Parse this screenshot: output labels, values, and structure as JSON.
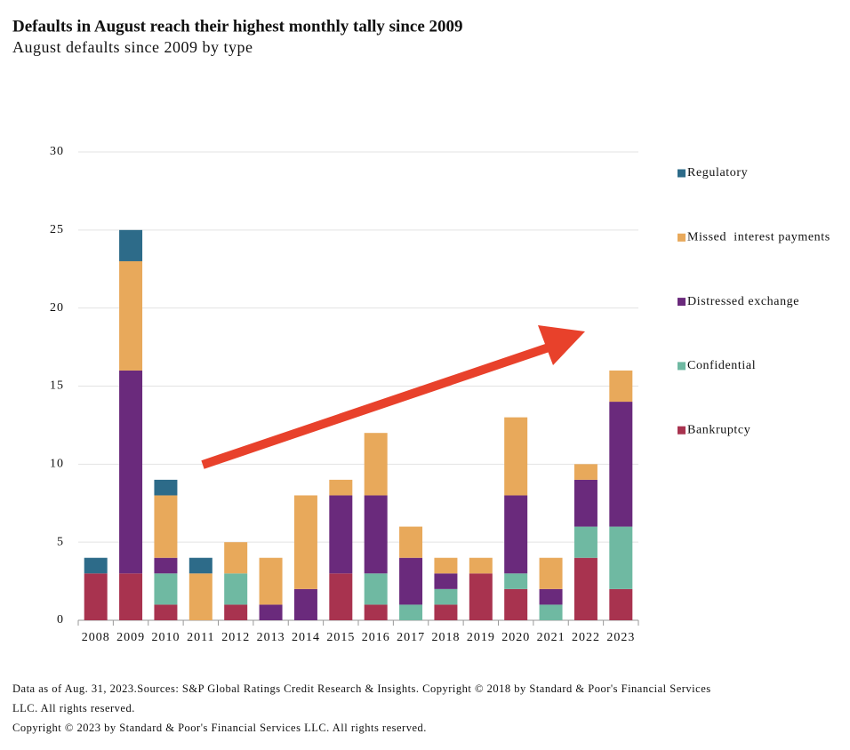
{
  "chart_data": {
    "type": "stacked_bar",
    "title": "Defaults in August reach their highest monthly tally since 2009",
    "subtitle": "August defaults since 2009 by type",
    "categories": [
      "2008",
      "2009",
      "2010",
      "2011",
      "2012",
      "2013",
      "2014",
      "2015",
      "2016",
      "2017",
      "2018",
      "2019",
      "2020",
      "2021",
      "2022",
      "2023"
    ],
    "series": [
      {
        "name": "Bankruptcy",
        "color": "#a8334f",
        "values": [
          3,
          3,
          1,
          0,
          1,
          0,
          0,
          3,
          1,
          0,
          1,
          3,
          2,
          0,
          4,
          2
        ]
      },
      {
        "name": "Confidential",
        "color": "#6fb9a2",
        "values": [
          0,
          0,
          2,
          0,
          2,
          0,
          0,
          0,
          2,
          1,
          1,
          0,
          1,
          1,
          2,
          4
        ]
      },
      {
        "name": "Distressed exchange",
        "color": "#6a2a7c",
        "values": [
          0,
          13,
          1,
          0,
          0,
          1,
          2,
          5,
          5,
          3,
          1,
          0,
          5,
          1,
          3,
          8
        ]
      },
      {
        "name": "Missed  interest payments",
        "color": "#e8a95b",
        "values": [
          0,
          7,
          4,
          3,
          2,
          3,
          6,
          1,
          4,
          2,
          1,
          1,
          5,
          2,
          1,
          2
        ]
      },
      {
        "name": "Regulatory",
        "color": "#2d6b89",
        "values": [
          1,
          2,
          1,
          1,
          0,
          0,
          0,
          0,
          0,
          0,
          0,
          0,
          0,
          0,
          0,
          0
        ]
      }
    ],
    "ylim": [
      0,
      30
    ],
    "yticks": [
      0,
      5,
      10,
      15,
      20,
      25,
      30
    ],
    "grid": true,
    "notes": [
      "Data as of Aug. 31, 2023.Sources: S&P Global Ratings Credit Research & Insights. Copyright © 2018 by Standard & Poor's Financial Services LLC. All rights reserved.",
      "Copyright © 2023 by Standard & Poor's Financial Services LLC. All rights reserved."
    ]
  }
}
